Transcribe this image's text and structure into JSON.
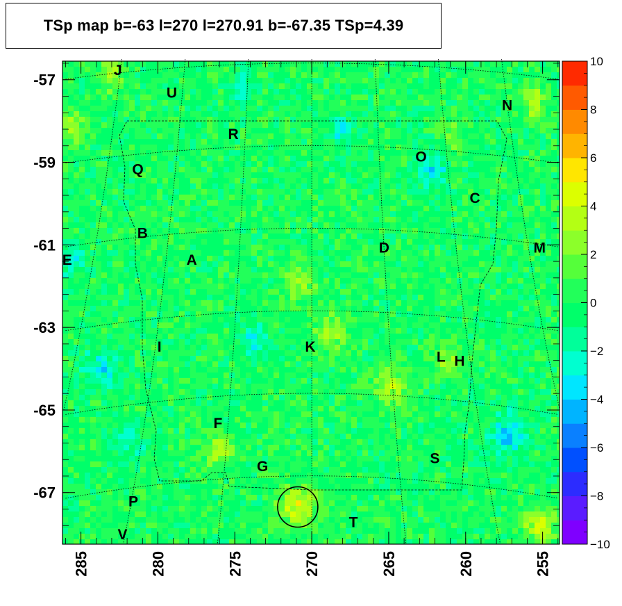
{
  "title": "TSp map b=-63 l=270 l=270.91 b=-67.35 TSp=4.39",
  "chart_data": {
    "type": "heatmap",
    "title": "TSp map b=-63 l=270 l=270.91 b=-67.35 TSp=4.39",
    "xlabel": "",
    "ylabel": "",
    "xlim": [
      286.2,
      253.9
    ],
    "ylim": [
      -68.25,
      -56.55
    ],
    "x_ticks": [
      "285",
      "280",
      "275",
      "270",
      "265",
      "260",
      "255"
    ],
    "y_ticks": [
      "-57",
      "-59",
      "-61",
      "-63",
      "-65",
      "-67"
    ],
    "x_tick_values": [
      285,
      280,
      275,
      270,
      265,
      260,
      255
    ],
    "y_tick_values": [
      -57,
      -59,
      -61,
      -63,
      -65,
      -67
    ],
    "colorbar": {
      "min": -10,
      "max": 10,
      "labels": [
        "10",
        "8",
        "6",
        "4",
        "2",
        "0",
        "−2",
        "−4",
        "−6",
        "−8",
        "−10"
      ],
      "label_values": [
        10,
        8,
        6,
        4,
        2,
        0,
        -2,
        -4,
        -6,
        -8,
        -10
      ]
    },
    "colors": {
      "background_green": "#22ff5a",
      "grid": "#000000"
    },
    "grid": true,
    "marker_circle": {
      "l": 270.91,
      "b": -67.35
    },
    "sources": [
      {
        "label": "J",
        "l": 282.6,
        "b": -56.75
      },
      {
        "label": "U",
        "l": 279.1,
        "b": -57.3
      },
      {
        "label": "N",
        "l": 257.3,
        "b": -57.6
      },
      {
        "label": "R",
        "l": 275.1,
        "b": -58.3
      },
      {
        "label": "O",
        "l": 262.9,
        "b": -58.85
      },
      {
        "label": "Q",
        "l": 281.3,
        "b": -59.15
      },
      {
        "label": "C",
        "l": 259.4,
        "b": -59.85
      },
      {
        "label": "B",
        "l": 281.0,
        "b": -60.7
      },
      {
        "label": "M",
        "l": 255.2,
        "b": -61.05
      },
      {
        "label": "D",
        "l": 265.3,
        "b": -61.05
      },
      {
        "label": "E",
        "l": 285.9,
        "b": -61.35
      },
      {
        "label": "A",
        "l": 277.8,
        "b": -61.35
      },
      {
        "label": "I",
        "l": 279.9,
        "b": -63.45
      },
      {
        "label": "K",
        "l": 270.1,
        "b": -63.45
      },
      {
        "label": "L",
        "l": 261.6,
        "b": -63.7
      },
      {
        "label": "H",
        "l": 260.4,
        "b": -63.8
      },
      {
        "label": "F",
        "l": 276.1,
        "b": -65.3
      },
      {
        "label": "G",
        "l": 273.2,
        "b": -66.35
      },
      {
        "label": "S",
        "l": 262.0,
        "b": -66.15
      },
      {
        "label": "P",
        "l": 281.6,
        "b": -67.2
      },
      {
        "label": "T",
        "l": 267.3,
        "b": -67.7
      },
      {
        "label": "V",
        "l": 282.3,
        "b": -68.0
      }
    ]
  }
}
